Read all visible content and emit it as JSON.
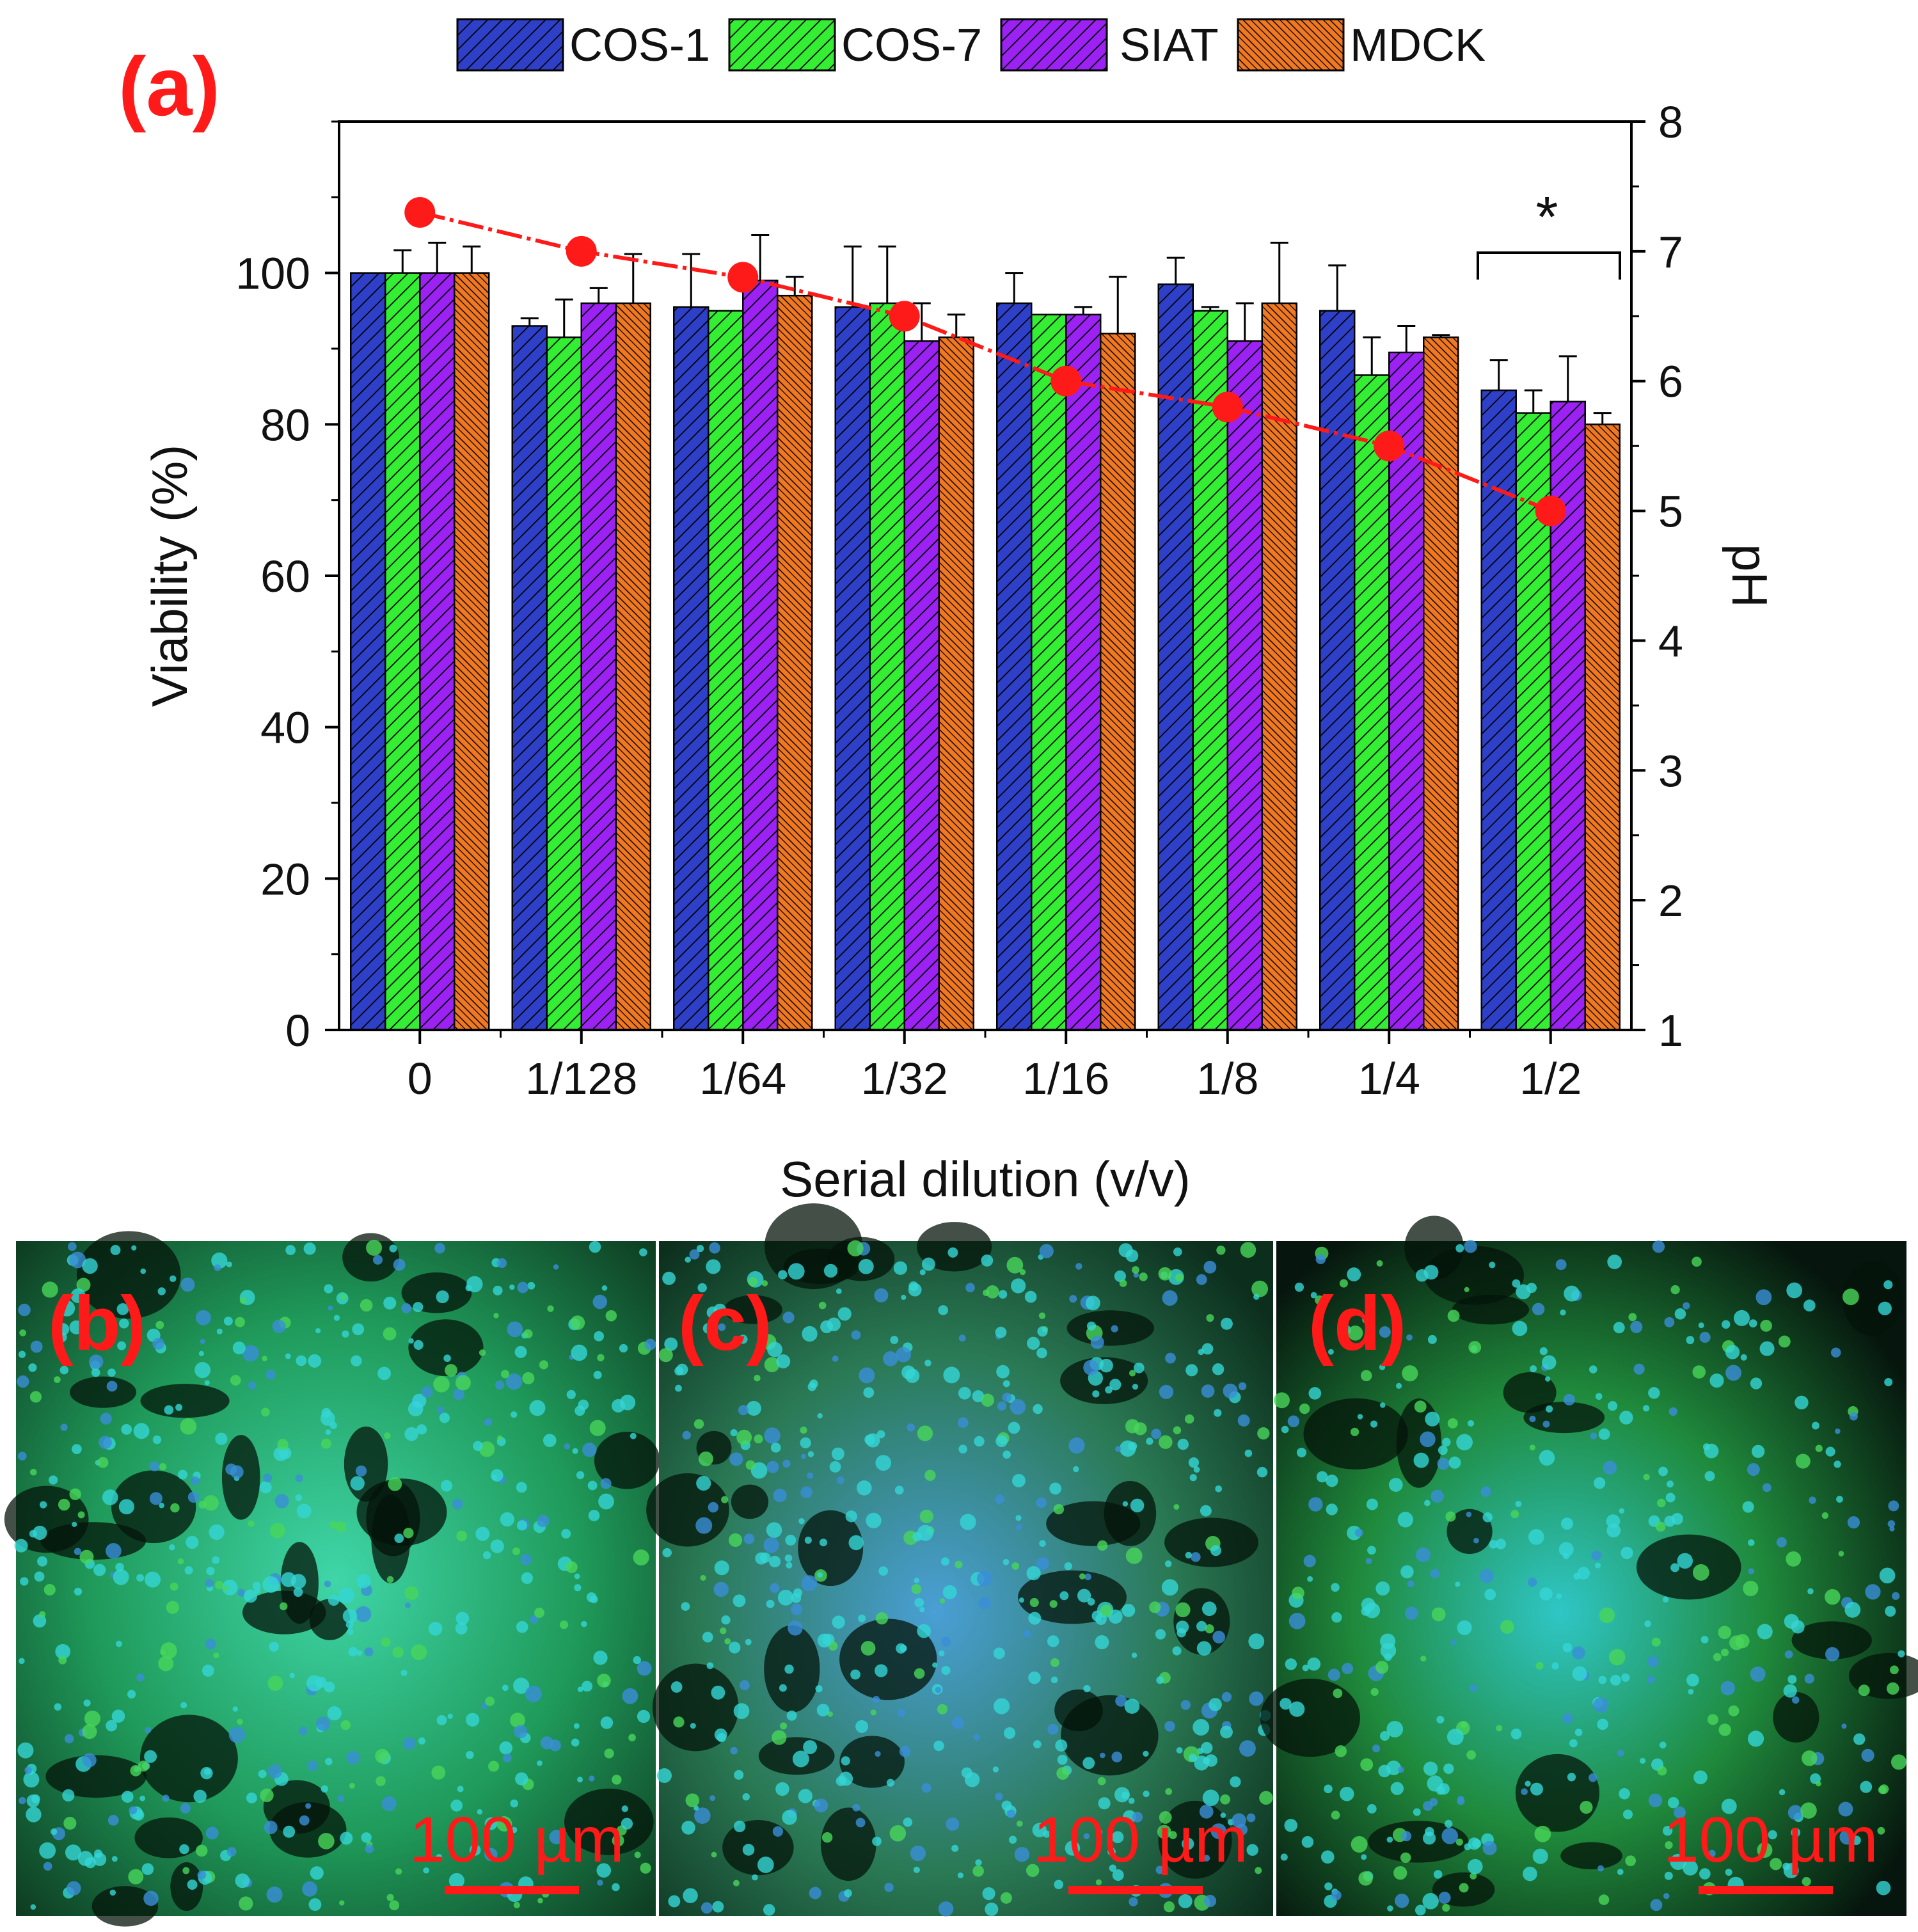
{
  "panel_labels": [
    "(a)",
    "(b)",
    "(c)",
    "(d)"
  ],
  "legend": [
    {
      "name": "COS-1",
      "color": "#2f40c8"
    },
    {
      "name": "COS-7",
      "color": "#33ee33"
    },
    {
      "name": "SIAT",
      "color": "#9b22f2"
    },
    {
      "name": "MDCK",
      "color": "#f07820"
    }
  ],
  "chart_data": {
    "type": "bar",
    "categories": [
      "0",
      "1/128",
      "1/64",
      "1/32",
      "1/16",
      "1/8",
      "1/4",
      "1/2"
    ],
    "series": [
      {
        "name": "COS-1",
        "values": [
          100,
          93,
          95.5,
          95.5,
          96,
          98.5,
          95,
          84.5
        ],
        "errors": [
          0,
          1,
          7,
          8,
          4,
          3.5,
          6,
          4
        ]
      },
      {
        "name": "COS-7",
        "values": [
          100,
          91.5,
          95,
          96,
          94.5,
          95,
          86.5,
          81.5
        ],
        "errors": [
          3,
          5,
          0,
          7.5,
          0,
          0.5,
          5,
          3
        ]
      },
      {
        "name": "SIAT",
        "values": [
          100,
          96,
          99,
          91,
          94.5,
          91,
          89.5,
          83
        ],
        "errors": [
          4,
          2,
          6,
          5,
          1,
          5,
          3.5,
          6
        ]
      },
      {
        "name": "MDCK",
        "values": [
          100,
          96,
          97,
          91.5,
          92,
          96,
          91.5,
          80
        ],
        "errors": [
          3.5,
          6.5,
          2.5,
          3,
          7.5,
          8,
          0.3,
          1.5
        ]
      }
    ],
    "ph_line": {
      "name": "pH",
      "values": [
        7.3,
        7.0,
        6.8,
        6.5,
        6.0,
        5.8,
        5.5,
        5.0
      ]
    },
    "xlabel": "Serial dilution (v/v)",
    "ylabel": "Viability (%)",
    "y2label": "pH",
    "ylim": [
      0,
      120
    ],
    "y2lim": [
      1,
      8
    ],
    "yticks": [
      "0",
      "20",
      "40",
      "60",
      "80",
      "100"
    ],
    "y2ticks": [
      "1",
      "2",
      "3",
      "4",
      "5",
      "6",
      "7",
      "8"
    ],
    "significance": {
      "label": "*",
      "from_category": "1/2"
    }
  },
  "images": [
    {
      "label": "(b)",
      "scale_bar": "100 µm"
    },
    {
      "label": "(c)",
      "scale_bar": "100 µm"
    },
    {
      "label": "(d)",
      "scale_bar": "100 µm"
    }
  ]
}
